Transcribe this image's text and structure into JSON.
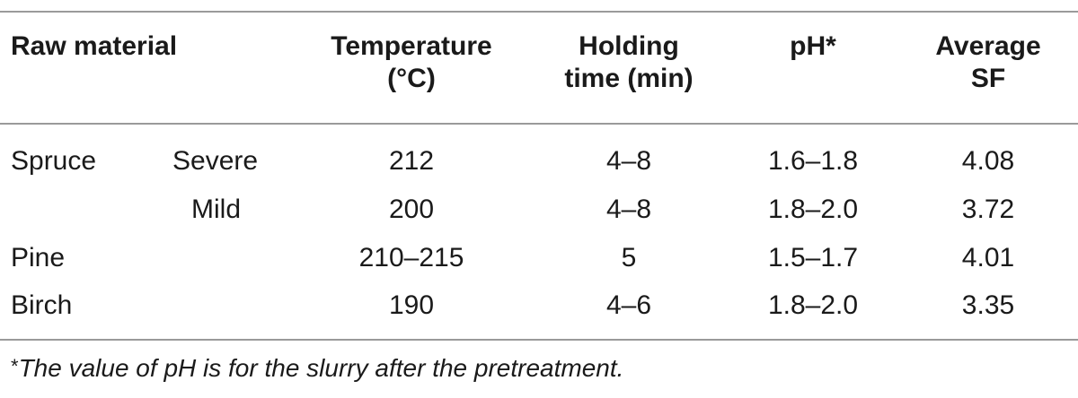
{
  "table": {
    "headers": {
      "raw_material": "Raw material",
      "temperature_line1": "Temperature",
      "temperature_line2": "(°C)",
      "holding_line1": "Holding",
      "holding_line2": "time (min)",
      "ph": "pH*",
      "sf_line1": "Average",
      "sf_line2": "SF"
    },
    "rows": [
      {
        "material": "Spruce",
        "condition": "Severe",
        "temperature": "212",
        "holding_time": "4–8",
        "ph": "1.6–1.8",
        "average_sf": "4.08"
      },
      {
        "material": "",
        "condition": "Mild",
        "temperature": "200",
        "holding_time": "4–8",
        "ph": "1.8–2.0",
        "average_sf": "3.72"
      },
      {
        "material": "Pine",
        "condition": "",
        "temperature": "210–215",
        "holding_time": "5",
        "ph": "1.5–1.7",
        "average_sf": "4.01"
      },
      {
        "material": "Birch",
        "condition": "",
        "temperature": "190",
        "holding_time": "4–6",
        "ph": "1.8–2.0",
        "average_sf": "3.35"
      }
    ]
  },
  "footnote": {
    "mark": "*",
    "text": "The value of pH is for the slurry after the pretreatment."
  }
}
